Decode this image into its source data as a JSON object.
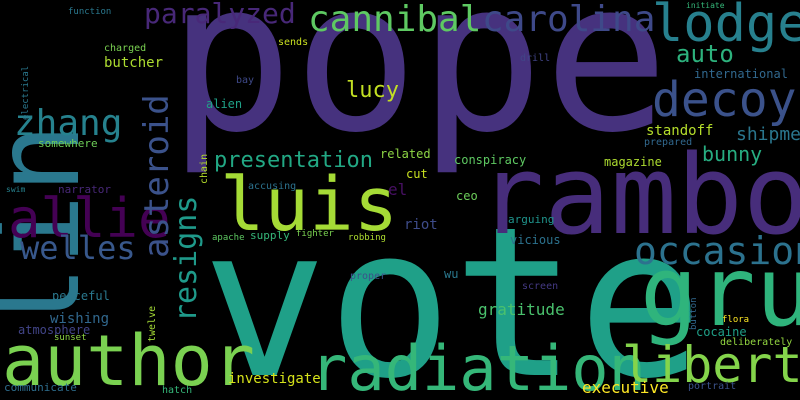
{
  "cloud": {
    "background": "#000000",
    "words": [
      {
        "text": "pope",
        "color": "#46327e"
      },
      {
        "text": "vote",
        "color": "#1fa088"
      },
      {
        "text": "rambo",
        "color": "#472d7b"
      },
      {
        "text": "lin",
        "color": "#2a788e"
      },
      {
        "text": "author",
        "color": "#7ad151"
      },
      {
        "text": "gru",
        "color": "#2fb47c"
      },
      {
        "text": "radiation",
        "color": "#35b779"
      },
      {
        "text": "luis",
        "color": "#a5db36"
      },
      {
        "text": "allie",
        "color": "#440154"
      },
      {
        "text": "lodge",
        "color": "#27808e"
      },
      {
        "text": "decoy",
        "color": "#3b528b"
      },
      {
        "text": "cannibal",
        "color": "#5ec962"
      },
      {
        "text": "carolina",
        "color": "#3e4989"
      },
      {
        "text": "liberty",
        "color": "#84d44b"
      },
      {
        "text": "occasion",
        "color": "#2c728e"
      },
      {
        "text": "asteroid",
        "color": "#3b528b"
      },
      {
        "text": "resigns",
        "color": "#1f9a8a"
      },
      {
        "text": "zhang",
        "color": "#26828e"
      },
      {
        "text": "welles",
        "color": "#38588c"
      },
      {
        "text": "paralyzed",
        "color": "#482878"
      },
      {
        "text": "presentation",
        "color": "#22a884"
      },
      {
        "text": "auto",
        "color": "#2db27d"
      },
      {
        "text": "bunny",
        "color": "#27ad81"
      },
      {
        "text": "shipment",
        "color": "#2a768e"
      },
      {
        "text": "lucy",
        "color": "#c2df23"
      },
      {
        "text": "butcher",
        "color": "#addc30"
      },
      {
        "text": "international",
        "color": "#31688e"
      },
      {
        "text": "standoff",
        "color": "#b5de2b"
      },
      {
        "text": "executive",
        "color": "#fde725"
      },
      {
        "text": "investigate",
        "color": "#d5e21a"
      },
      {
        "text": "wishing",
        "color": "#31688e"
      },
      {
        "text": "gratitude",
        "color": "#4ac16d"
      },
      {
        "text": "magazine",
        "color": "#addc30"
      },
      {
        "text": "alien",
        "color": "#1fa187"
      },
      {
        "text": "related",
        "color": "#8ed645"
      },
      {
        "text": "conspiracy",
        "color": "#5ec962"
      },
      {
        "text": "riot",
        "color": "#3e4c8a"
      },
      {
        "text": "el",
        "color": "#471063"
      },
      {
        "text": "cut",
        "color": "#c8e020"
      },
      {
        "text": "ceo",
        "color": "#6ccd5a"
      },
      {
        "text": "wu",
        "color": "#2a788e"
      },
      {
        "text": "vicious",
        "color": "#2c728e"
      },
      {
        "text": "arguing",
        "color": "#1f948c"
      },
      {
        "text": "peaceful",
        "color": "#2a788e"
      },
      {
        "text": "atmosphere",
        "color": "#414487"
      },
      {
        "text": "narrator",
        "color": "#482878"
      },
      {
        "text": "somewhere",
        "color": "#6ece58"
      },
      {
        "text": "supply",
        "color": "#35b779"
      },
      {
        "text": "fighter",
        "color": "#7ad151"
      },
      {
        "text": "robbing",
        "color": "#addc30"
      },
      {
        "text": "accusing",
        "color": "#2c728e"
      },
      {
        "text": "communicate",
        "color": "#2e6e8e"
      },
      {
        "text": "sunset",
        "color": "#8ed645"
      },
      {
        "text": "hatch",
        "color": "#35b779"
      },
      {
        "text": "cocaine",
        "color": "#1fa088"
      },
      {
        "text": "deliberately",
        "color": "#93d741"
      },
      {
        "text": "flora",
        "color": "#fde725"
      },
      {
        "text": "portrait",
        "color": "#3b528b"
      },
      {
        "text": "chain",
        "color": "#b5de2b"
      },
      {
        "text": "sends",
        "color": "#c8e020"
      },
      {
        "text": "drill",
        "color": "#414487"
      },
      {
        "text": "charged",
        "color": "#7ad151"
      },
      {
        "text": "function",
        "color": "#2a788e"
      },
      {
        "text": "initiate",
        "color": "#35b779"
      },
      {
        "text": "twelve",
        "color": "#a5db36"
      },
      {
        "text": "screen",
        "color": "#443983"
      },
      {
        "text": "proper",
        "color": "#3b528b"
      },
      {
        "text": "prepared",
        "color": "#31688e"
      },
      {
        "text": "electrical",
        "color": "#2a788e"
      },
      {
        "text": "swim",
        "color": "#26828e"
      },
      {
        "text": "apache",
        "color": "#5ec962"
      },
      {
        "text": "button",
        "color": "#31688e"
      },
      {
        "text": "bay",
        "color": "#3e4989"
      }
    ]
  }
}
